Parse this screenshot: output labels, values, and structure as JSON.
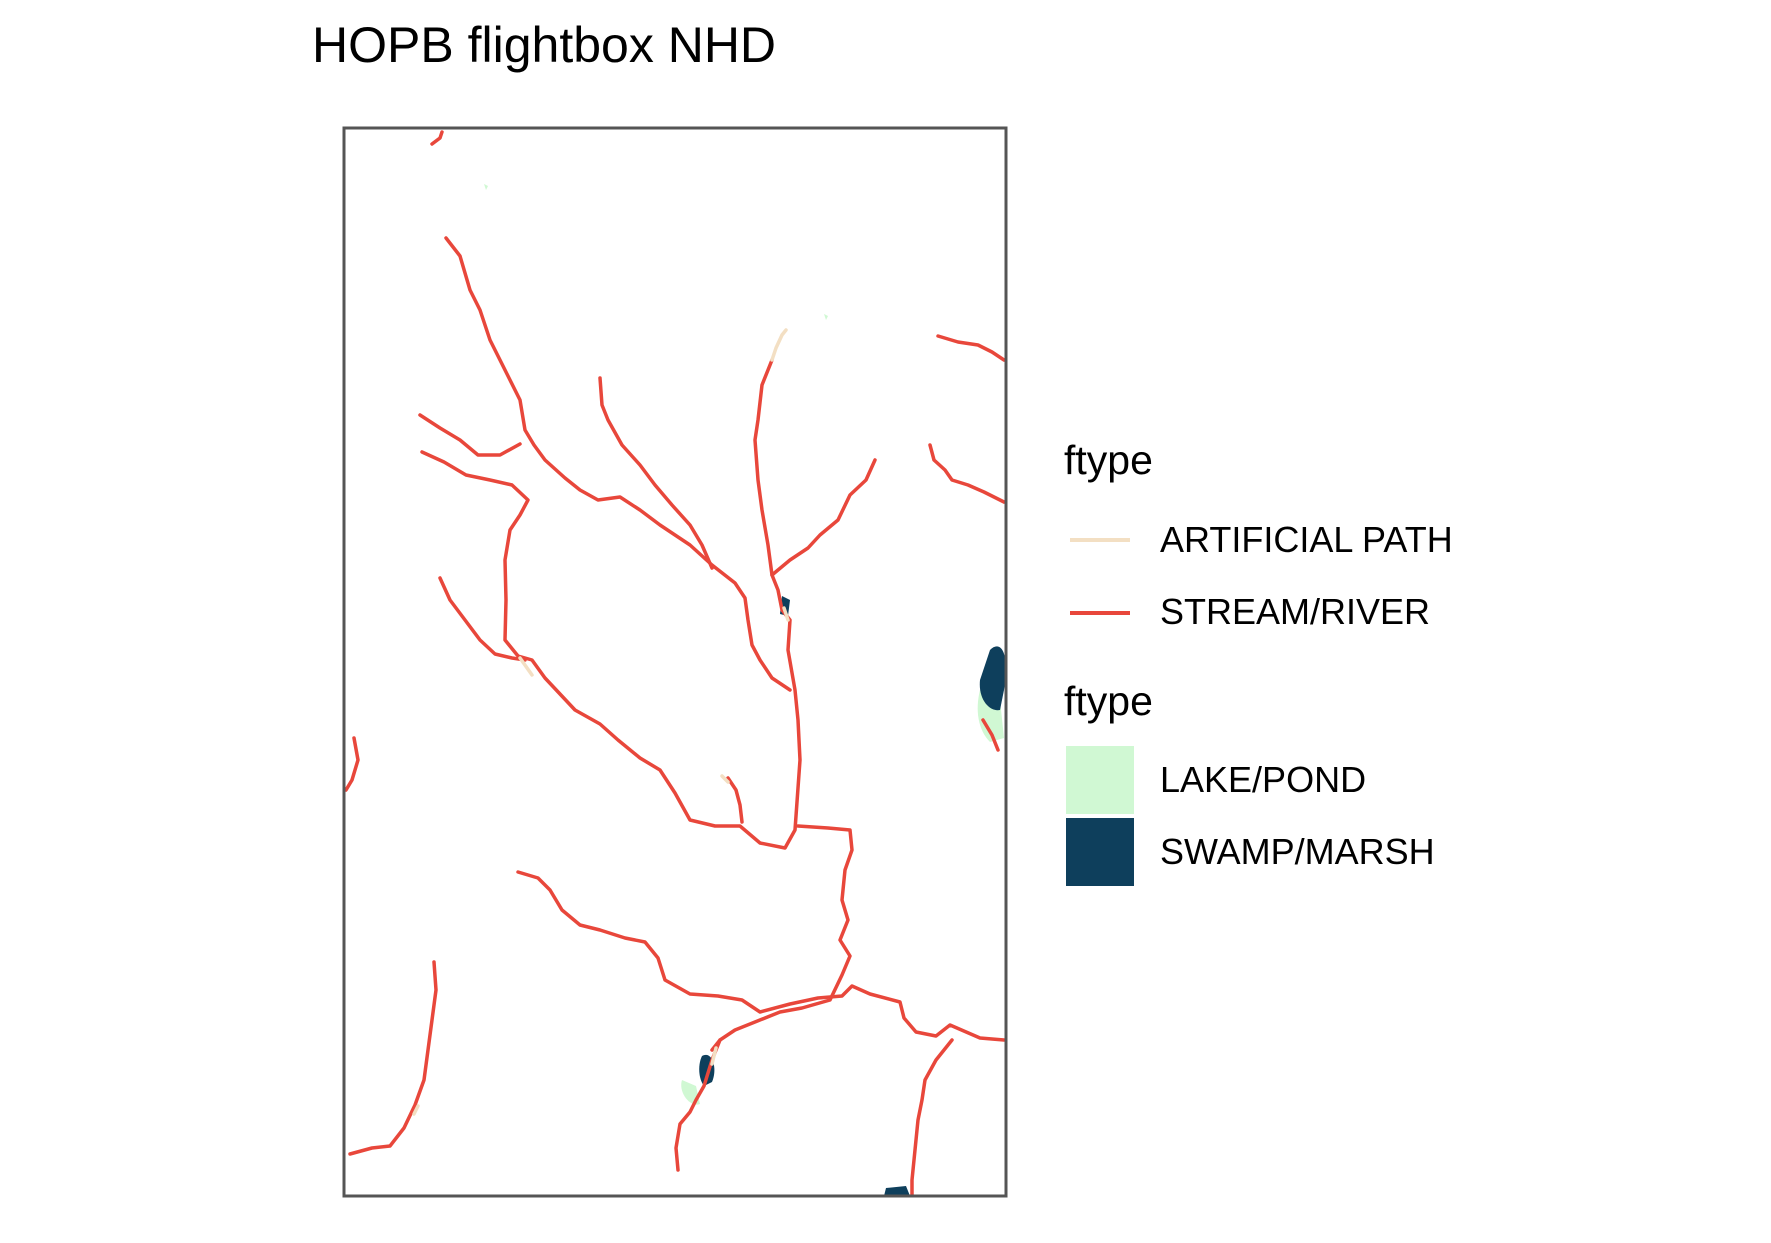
{
  "title": "HOPB flightbox NHD",
  "legend": {
    "flowlines": {
      "title": "ftype",
      "items": [
        {
          "label": "ARTIFICIAL PATH",
          "color": "#f3dfc3"
        },
        {
          "label": "STREAM/RIVER",
          "color": "#e8473b"
        }
      ]
    },
    "waterbodies": {
      "title": "ftype",
      "items": [
        {
          "label": "LAKE/POND",
          "color": "#d0f8d3"
        },
        {
          "label": "SWAMP/MARSH",
          "color": "#0e3f5c"
        }
      ]
    }
  }
}
